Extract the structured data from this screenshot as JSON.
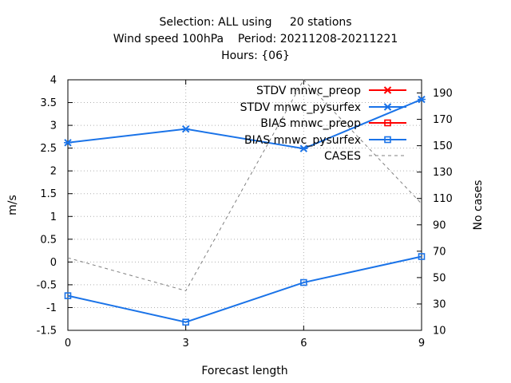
{
  "chart_data": {
    "type": "line",
    "title_lines": [
      "Selection: ALL using     20 stations",
      "Wind speed 100hPa    Period: 20211208-20211221",
      "Hours: {06}"
    ],
    "xlabel": "Forecast length",
    "ylabel": "m/s",
    "y2label": "No cases",
    "x": [
      0,
      3,
      6,
      9
    ],
    "xlim": [
      0,
      9
    ],
    "ylim": [
      -1.5,
      4
    ],
    "y2lim": [
      10,
      200
    ],
    "x_ticks": [
      "0",
      "3",
      "6",
      "9"
    ],
    "y_ticks": [
      "-1.5",
      "-1",
      "-0.5",
      "0",
      "0.5",
      "1",
      "1.5",
      "2",
      "2.5",
      "3",
      "3.5",
      "4"
    ],
    "y2_ticks": [
      "10",
      "30",
      "50",
      "70",
      "90",
      "110",
      "130",
      "150",
      "170",
      "190"
    ],
    "grid": true,
    "legend_position": "top-right",
    "series": [
      {
        "name": "STDV mnwc_preop",
        "axis": "y",
        "values": [
          2.62,
          2.92,
          2.49,
          3.57
        ],
        "color": "#ff0000",
        "marker": "x",
        "dash": false,
        "visible_line": false
      },
      {
        "name": "STDV mnwc_pysurfex",
        "axis": "y",
        "values": [
          2.62,
          2.92,
          2.49,
          3.57
        ],
        "color": "#1a73e8",
        "marker": "x",
        "dash": false,
        "visible_line": true
      },
      {
        "name": "BIAS mnwc_preop",
        "axis": "y",
        "values": [
          -0.74,
          -1.32,
          -0.45,
          0.12
        ],
        "color": "#ff0000",
        "marker": "square",
        "dash": false,
        "visible_line": false
      },
      {
        "name": "BIAS mnwc_pysurfex",
        "axis": "y",
        "values": [
          -0.74,
          -1.32,
          -0.45,
          0.12
        ],
        "color": "#1a73e8",
        "marker": "square",
        "dash": false,
        "visible_line": true
      },
      {
        "name": "CASES",
        "axis": "y2",
        "values": [
          65,
          40,
          200,
          106
        ],
        "color": "#808080",
        "marker": "none",
        "dash": true,
        "visible_line": true
      }
    ]
  }
}
